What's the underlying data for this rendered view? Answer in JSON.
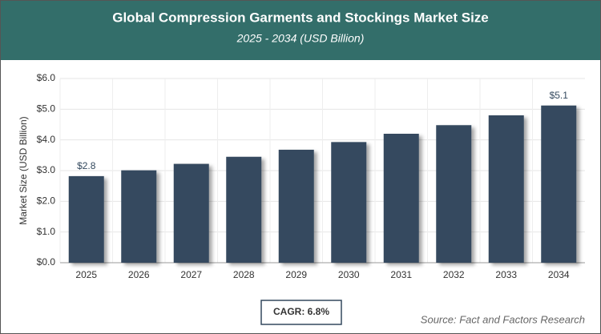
{
  "chart_data": {
    "type": "bar",
    "title": "Global Compression Garments and Stockings Market Size",
    "subtitle": "2025 - 2034 (USD Billion)",
    "y_label": "Market Size (USD Billion)",
    "categories": [
      "2025",
      "2026",
      "2027",
      "2028",
      "2029",
      "2030",
      "2031",
      "2032",
      "2033",
      "2034"
    ],
    "values": [
      2.82,
      3.01,
      3.22,
      3.45,
      3.68,
      3.93,
      4.2,
      4.48,
      4.8,
      5.12
    ],
    "value_labels": [
      "$2.8",
      null,
      null,
      null,
      null,
      null,
      null,
      null,
      null,
      "$5.1"
    ],
    "color": "#34495e",
    "ylim": [
      0,
      6
    ],
    "yticks": [
      {
        "value": 0,
        "label": "$0.0"
      },
      {
        "value": 1,
        "label": "$1.0"
      },
      {
        "value": 2,
        "label": "$2.0"
      },
      {
        "value": 3,
        "label": "$3.0"
      },
      {
        "value": 4,
        "label": "$4.0"
      },
      {
        "value": 5,
        "label": "$5.0"
      },
      {
        "value": 6,
        "label": "$6.0"
      }
    ],
    "grid": true,
    "annotation": "CAGR: 6.8%",
    "source": "Source: Fact and Factors Research"
  }
}
